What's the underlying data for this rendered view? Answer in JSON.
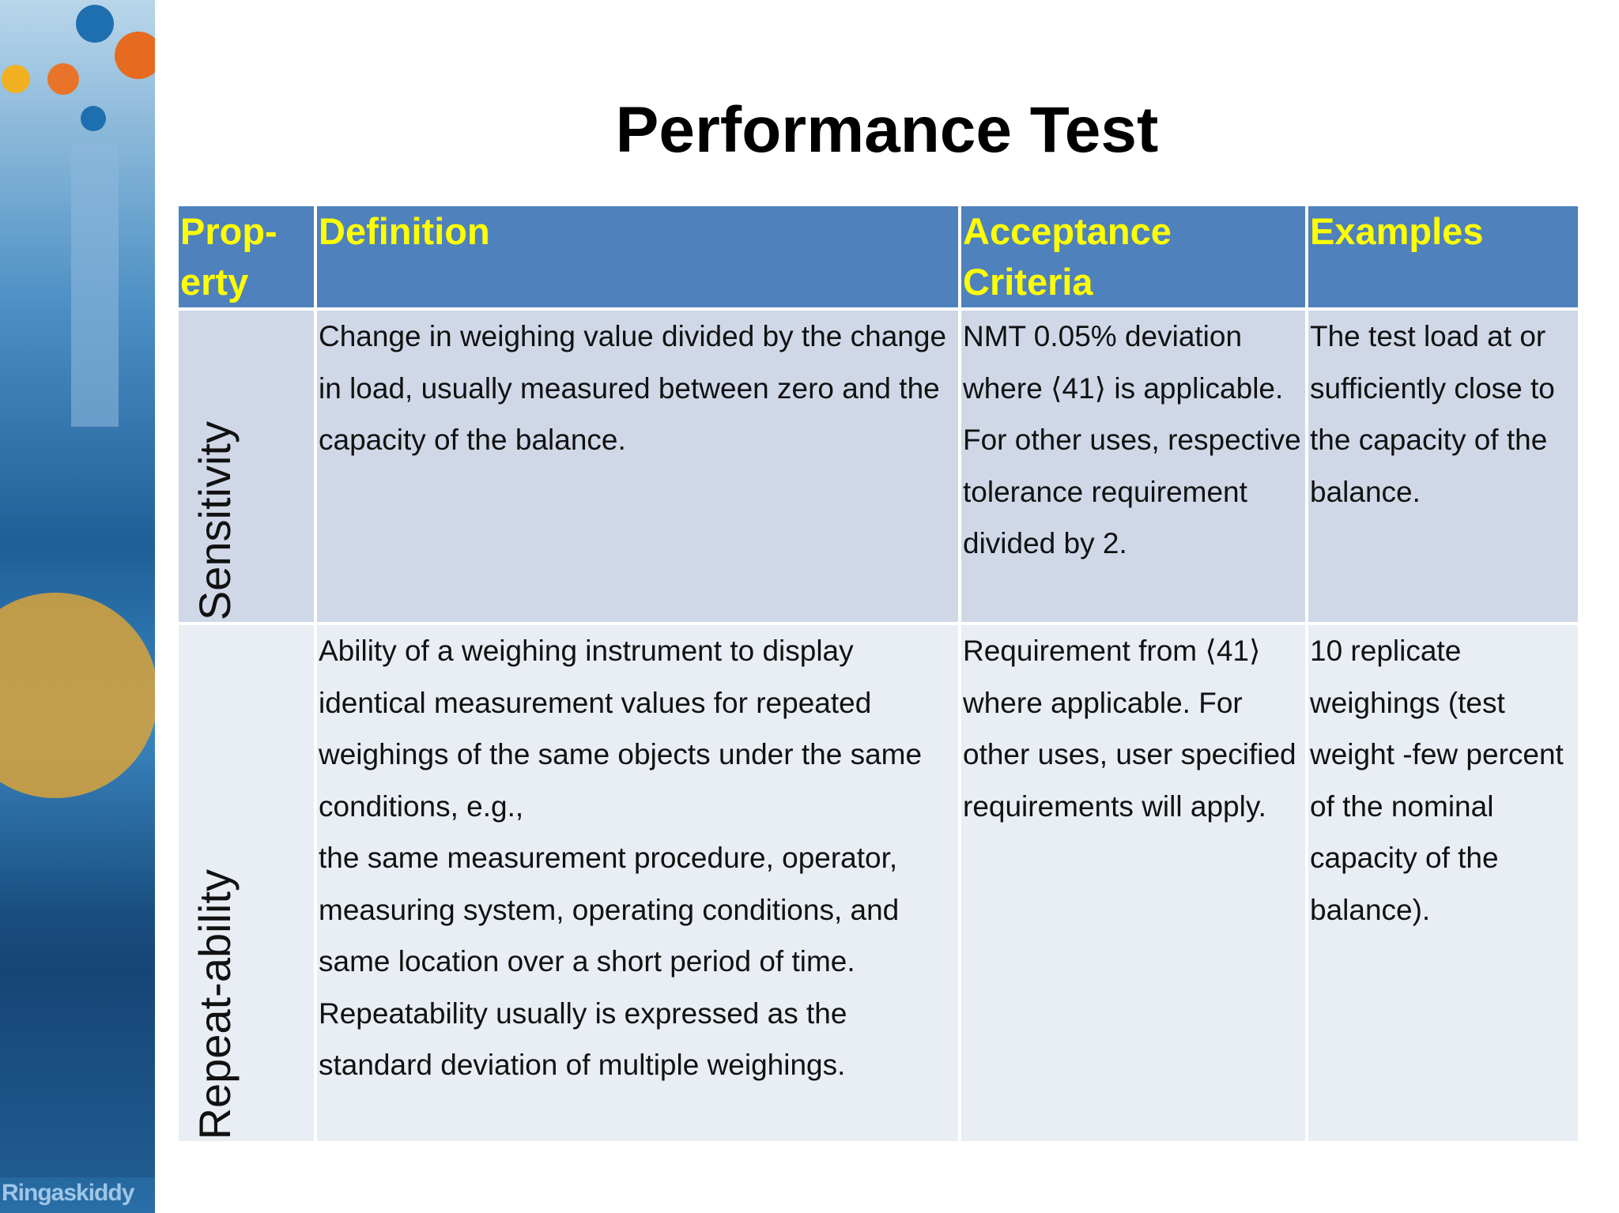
{
  "title": "Performance Test",
  "sidebar": {
    "label": "Ringaskiddy"
  },
  "table": {
    "header": [
      "Prop-erty",
      "Definition",
      "Acceptance Criteria",
      "Examples"
    ],
    "rows": [
      [
        "Sensitivity",
        "Change in weighing value divided by the change in load, usually measured between zero and the capacity of the balance.",
        "NMT 0.05% deviation where ⟨41⟩ is applicable. For other uses, respective tolerance requirement divided by 2.",
        "The test load at or sufficiently close to  the capacity of the balance."
      ],
      [
        "Repeat-ability",
        "Ability of a weighing instrument to display identical measurement values for repeated weighings of the same objects under the same conditions, e.g.,\nthe same measurement procedure, operator, measuring system, operating conditions, and same location over a short period of time. Repeatability usually is expressed  as the standard deviation of multiple weighings.",
        "Requirement from ⟨41⟩ where applicable. For other uses, user specified requirements will apply.",
        "10 replicate weighings  (test weight -few percent of the nominal capacity of the balance)."
      ]
    ]
  }
}
